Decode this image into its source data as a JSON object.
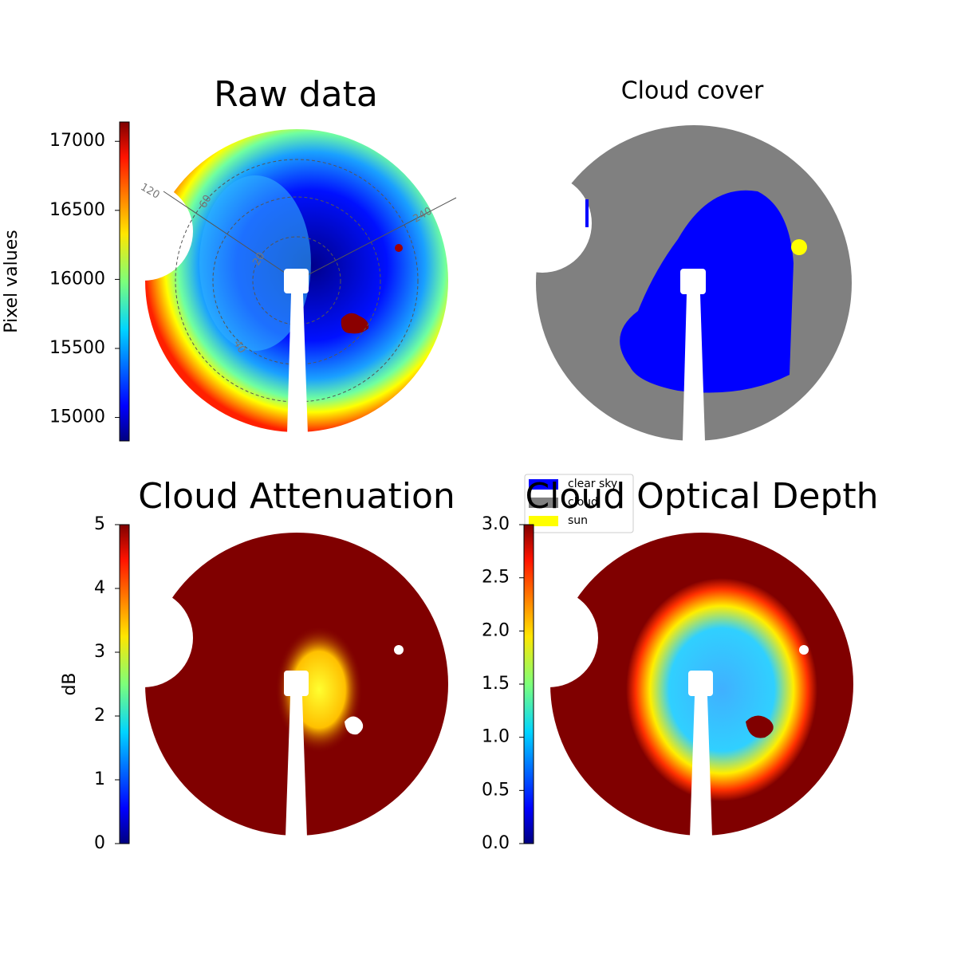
{
  "chart_data": [
    {
      "type": "image",
      "title": "Raw data",
      "annotations": [
        "120",
        "60",
        "240",
        "20",
        "40"
      ],
      "colorbar": {
        "label": "Pixel values",
        "lim": [
          14830,
          17140
        ],
        "ticks": [
          15000,
          15500,
          16000,
          16500,
          17000
        ],
        "colormap": "jet"
      }
    },
    {
      "type": "image",
      "title": "Cloud cover",
      "legend": [
        {
          "name": "clear sky",
          "color": "#0000ff"
        },
        {
          "name": "cloud",
          "color": "#808080"
        },
        {
          "name": "sun",
          "color": "#ffff00"
        }
      ]
    },
    {
      "type": "image",
      "title": "Cloud Attenuation",
      "colorbar": {
        "label": "dB",
        "lim": [
          0,
          5
        ],
        "ticks": [
          0,
          1,
          2,
          3,
          4,
          5
        ],
        "colormap": "jet"
      }
    },
    {
      "type": "image",
      "title": "Cloud Optical Depth",
      "colorbar": {
        "lim": [
          0,
          3
        ],
        "ticks": [
          {
            "value": 0,
            "label": "0.0"
          },
          0.5,
          {
            "value": 1,
            "label": "1.0"
          },
          1.5,
          {
            "value": 2,
            "label": "2.0"
          },
          2.5,
          {
            "value": 3,
            "label": "3.0"
          }
        ],
        "colormap": "jet"
      }
    }
  ]
}
